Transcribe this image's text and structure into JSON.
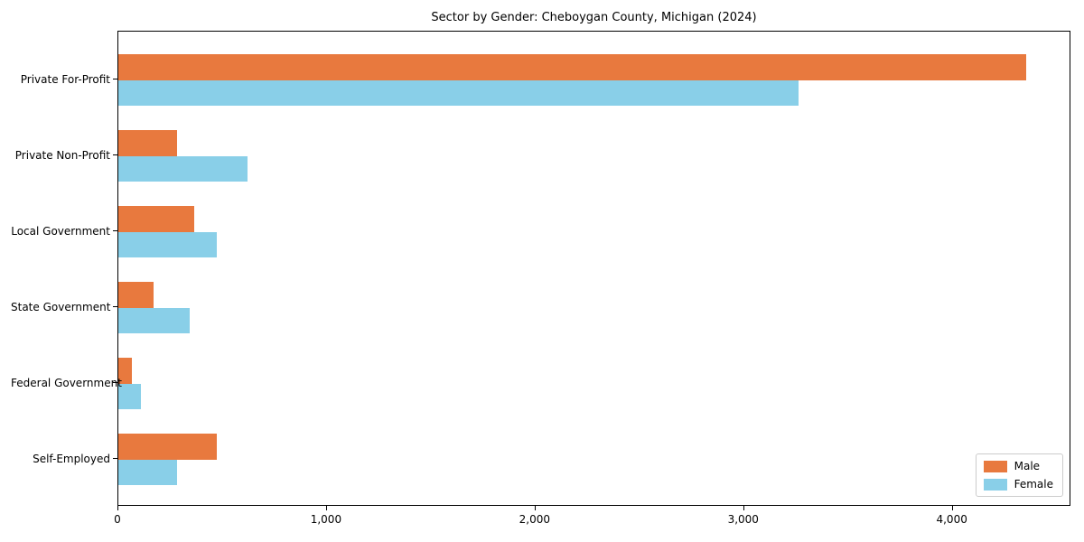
{
  "chart_data": {
    "type": "bar",
    "orientation": "horizontal",
    "title": "Sector by Gender: Cheboygan County, Michigan (2024)",
    "categories": [
      "Private For-Profit",
      "Private Non-Profit",
      "Local Government",
      "State Government",
      "Federal Government",
      "Self-Employed"
    ],
    "series": [
      {
        "name": "Male",
        "color": "#e8793e",
        "values": [
          4350,
          280,
          365,
          170,
          65,
          470
        ]
      },
      {
        "name": "Female",
        "color": "#89cfe8",
        "values": [
          3260,
          620,
          470,
          340,
          110,
          280
        ]
      }
    ],
    "xlabel": "",
    "ylabel": "",
    "xlim": [
      0,
      4560
    ],
    "xticks": [
      0,
      1000,
      2000,
      3000,
      4000
    ],
    "xtick_labels": [
      "0",
      "1,000",
      "2,000",
      "3,000",
      "4,000"
    ],
    "grid": false,
    "legend_position": "lower right",
    "background_color": "#ffffff",
    "frame_color": "#000000"
  }
}
